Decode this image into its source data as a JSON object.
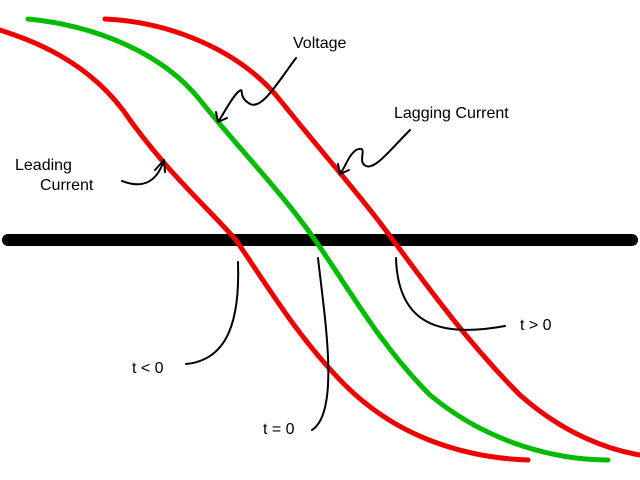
{
  "colors": {
    "background": "#ffffff",
    "axis": "#000000",
    "voltage": "#00bb00",
    "current": "#ee0000",
    "text": "#000000"
  },
  "diagram": {
    "curves": {
      "voltage": "Voltage",
      "leading_current": [
        "Leading",
        "Current"
      ],
      "lagging_current": "Lagging Current"
    },
    "time_markers": {
      "before": "t < 0",
      "zero": "t = 0",
      "after": "t > 0"
    }
  }
}
